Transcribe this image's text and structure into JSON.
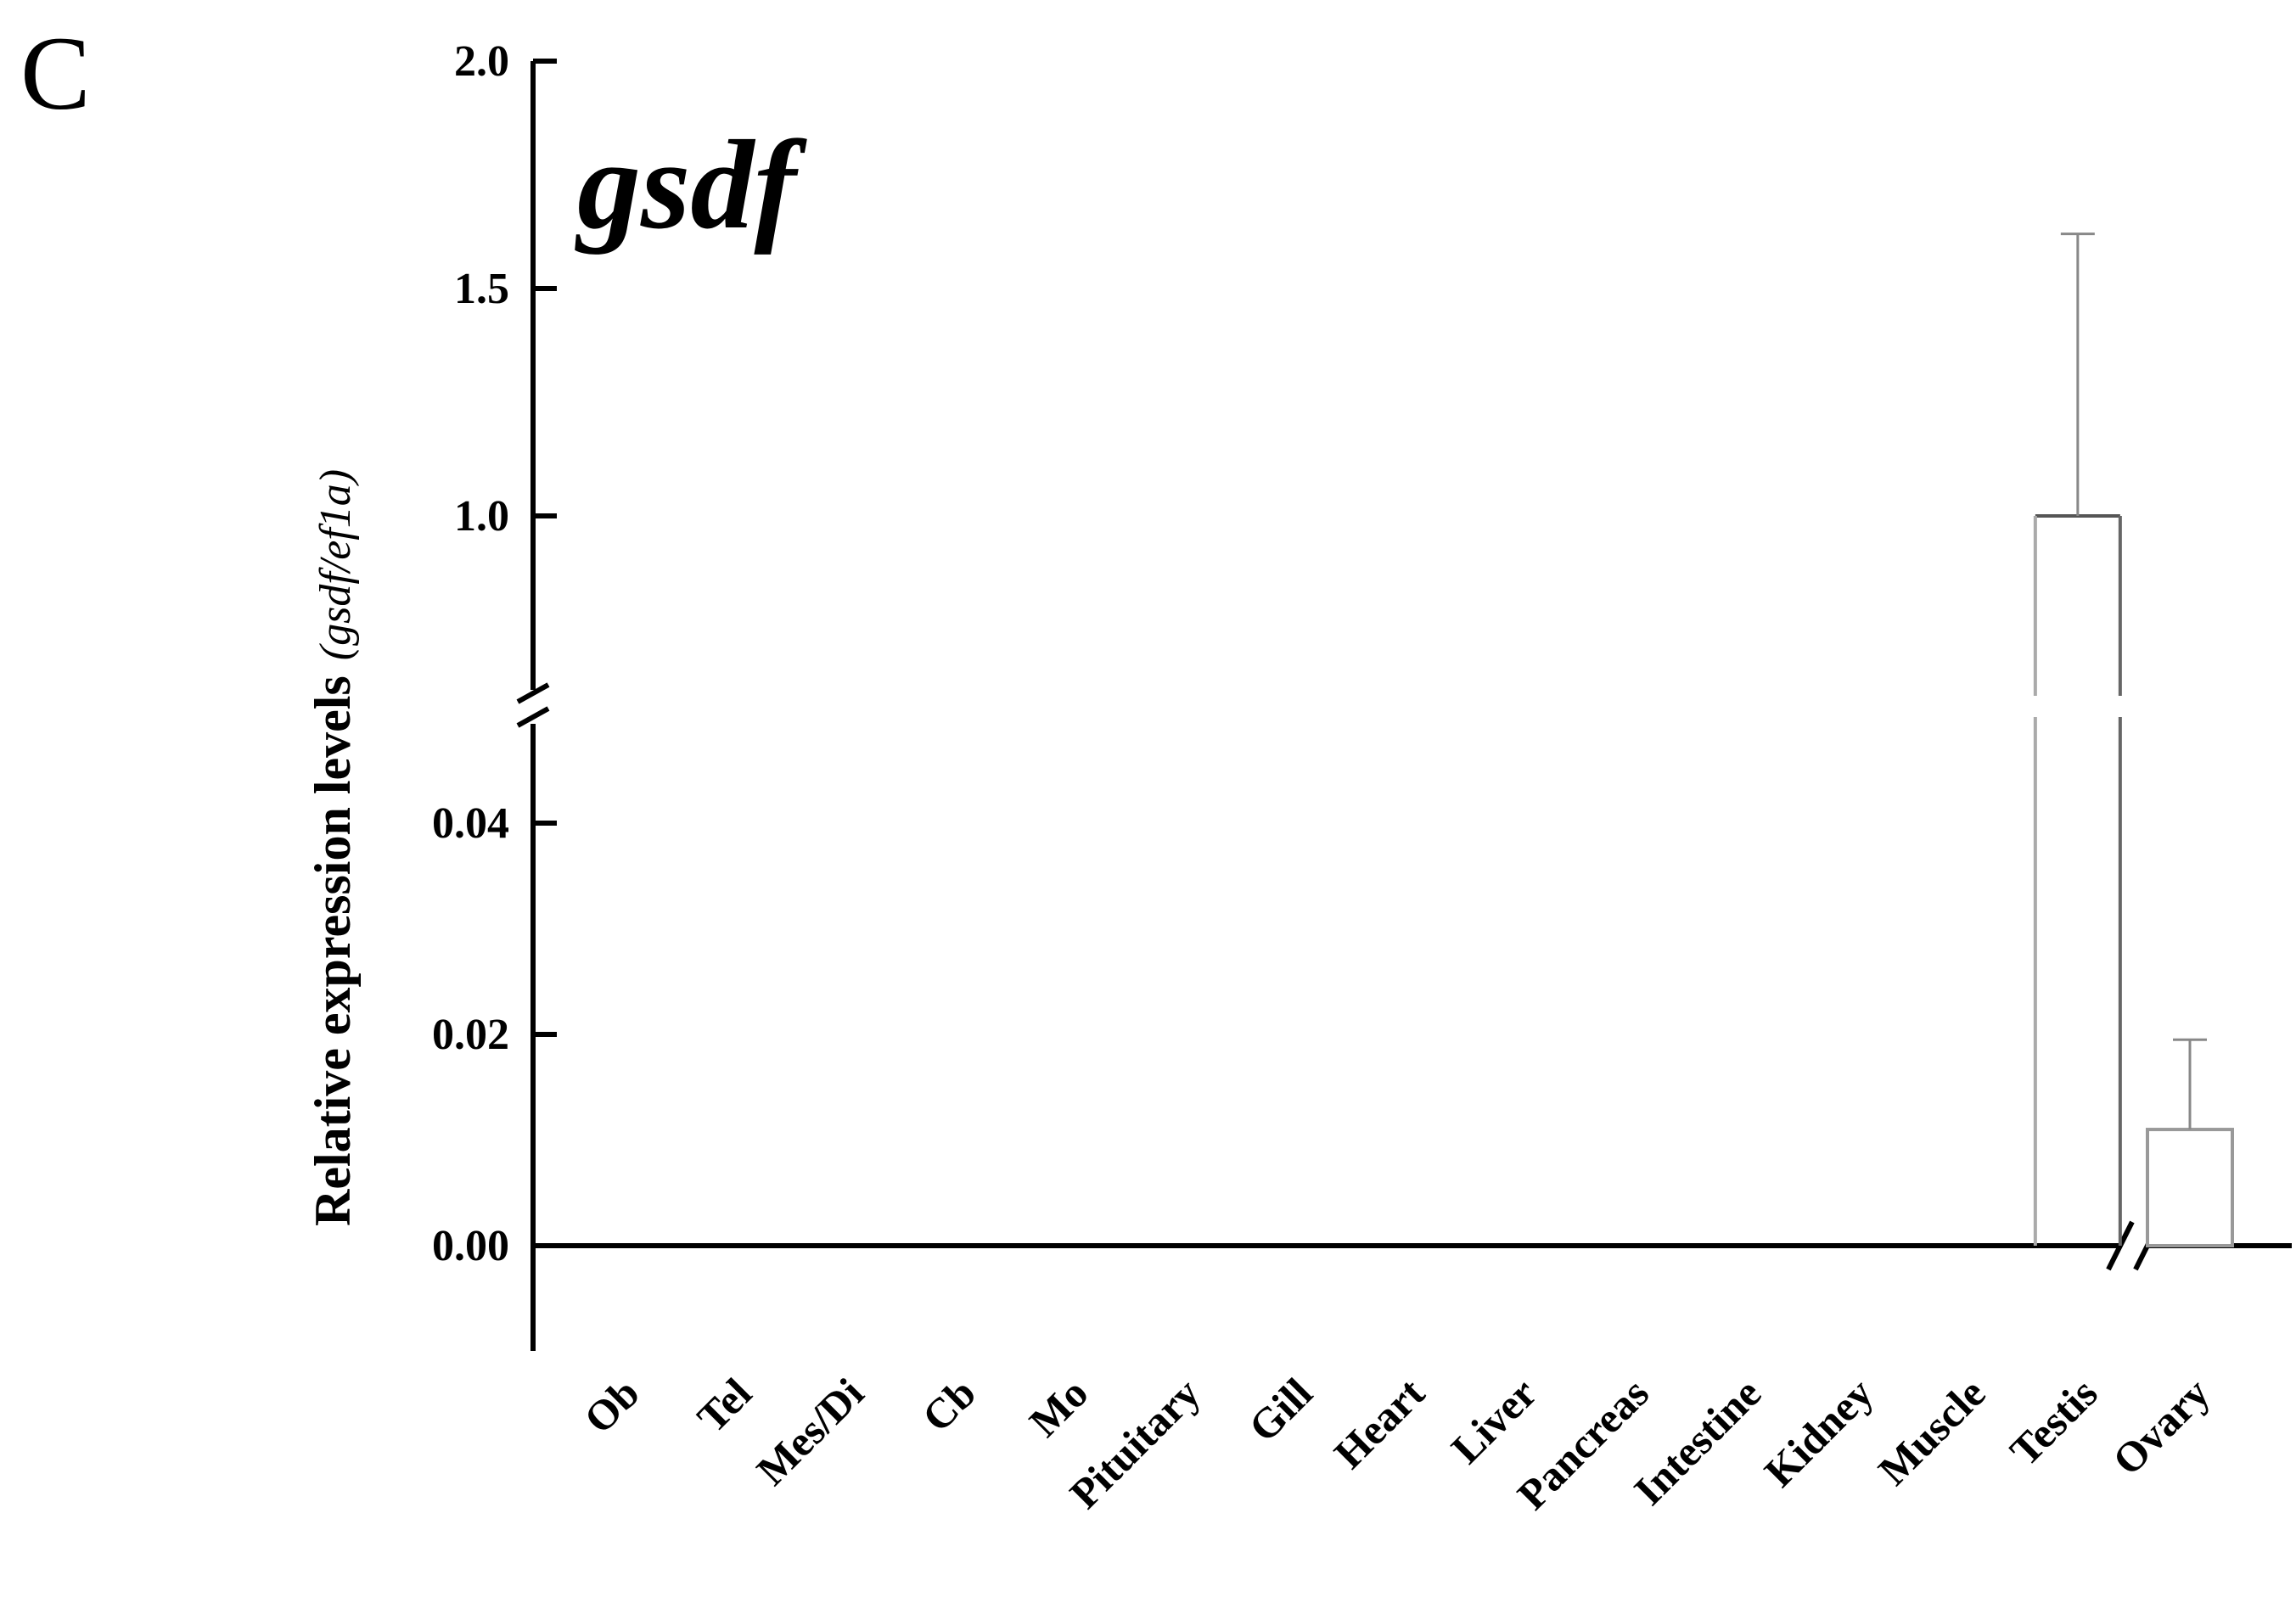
{
  "panel_label": "C",
  "chart_data": {
    "type": "bar",
    "title": "gsdf",
    "ylabel": "Relative expression levels",
    "ylabel_suffix": "(gsdf/ef1a)",
    "xlabel": "",
    "categories": [
      "Ob",
      "Tel",
      "Mes/Di",
      "Cb",
      "Mo",
      "Pituitary",
      "Gill",
      "Heart",
      "Liver",
      "Pancreas",
      "Intestine",
      "Kidney",
      "Muscle",
      "Testis",
      "Ovary"
    ],
    "values": [
      0,
      0,
      0,
      0,
      0,
      0,
      0,
      0,
      0,
      0,
      0,
      0,
      0,
      1.0,
      0.011
    ],
    "errors": [
      null,
      null,
      null,
      null,
      null,
      null,
      null,
      null,
      null,
      null,
      null,
      null,
      null,
      0.62,
      0.0085
    ],
    "y_axis_break": true,
    "lower_segment": {
      "ylim": [
        0,
        0.04
      ],
      "ticks": [
        "0.00",
        "0.02",
        "0.04"
      ]
    },
    "upper_segment": {
      "ylim": [
        1.0,
        2.0
      ],
      "ticks": [
        "1.0",
        "1.5",
        "2.0"
      ]
    },
    "x_axis_break_between": [
      "Testis",
      "Ovary"
    ],
    "bar_fill": "#ffffff",
    "bar_stroke": "#555555",
    "errorbar_color": "#888888",
    "axis_color": "#000000",
    "grid": false,
    "legend": "none"
  }
}
